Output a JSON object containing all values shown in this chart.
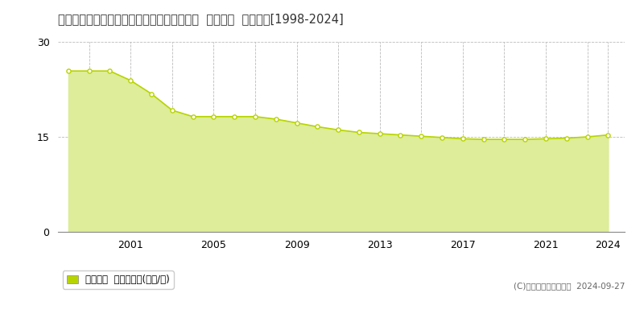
{
  "title": "石川県河北郡内灘町字ハマナス１丁目５８番  公示地価  地価推移[1998-2024]",
  "years": [
    1998,
    1999,
    2000,
    2001,
    2002,
    2003,
    2004,
    2005,
    2006,
    2007,
    2008,
    2009,
    2010,
    2011,
    2012,
    2013,
    2014,
    2015,
    2016,
    2017,
    2018,
    2019,
    2020,
    2021,
    2022,
    2023,
    2024
  ],
  "values": [
    25.4,
    25.4,
    25.4,
    23.9,
    21.8,
    19.2,
    18.2,
    18.2,
    18.2,
    18.2,
    17.8,
    17.2,
    16.6,
    16.1,
    15.7,
    15.5,
    15.3,
    15.1,
    14.9,
    14.7,
    14.6,
    14.6,
    14.6,
    14.7,
    14.8,
    15.0,
    15.3
  ],
  "line_color": "#b8d400",
  "fill_color": "#dded99",
  "marker_facecolor": "#ffffff",
  "marker_edgecolor": "#b8d400",
  "grid_color": "#bbbbbb",
  "background_color": "#ffffff",
  "ylim": [
    0,
    30
  ],
  "yticks": [
    0,
    15,
    30
  ],
  "xlim_left": 1997.5,
  "xlim_right": 2024.8,
  "xticks": [
    2001,
    2005,
    2009,
    2013,
    2017,
    2021,
    2024
  ],
  "xtick_labels": [
    "2001",
    "2005",
    "2009",
    "2013",
    "2017",
    "2021",
    "2024"
  ],
  "vgrid_years": [
    1999,
    2001,
    2003,
    2005,
    2007,
    2009,
    2011,
    2013,
    2015,
    2017,
    2019,
    2021,
    2023,
    2024
  ],
  "legend_label": "公示地価  平均坪単価(万円/坪)",
  "copyright_text": "(C)土地価格ドットコム  2024-09-27",
  "title_fontsize": 10.5,
  "tick_fontsize": 9,
  "legend_fontsize": 8.5,
  "copyright_fontsize": 7.5
}
